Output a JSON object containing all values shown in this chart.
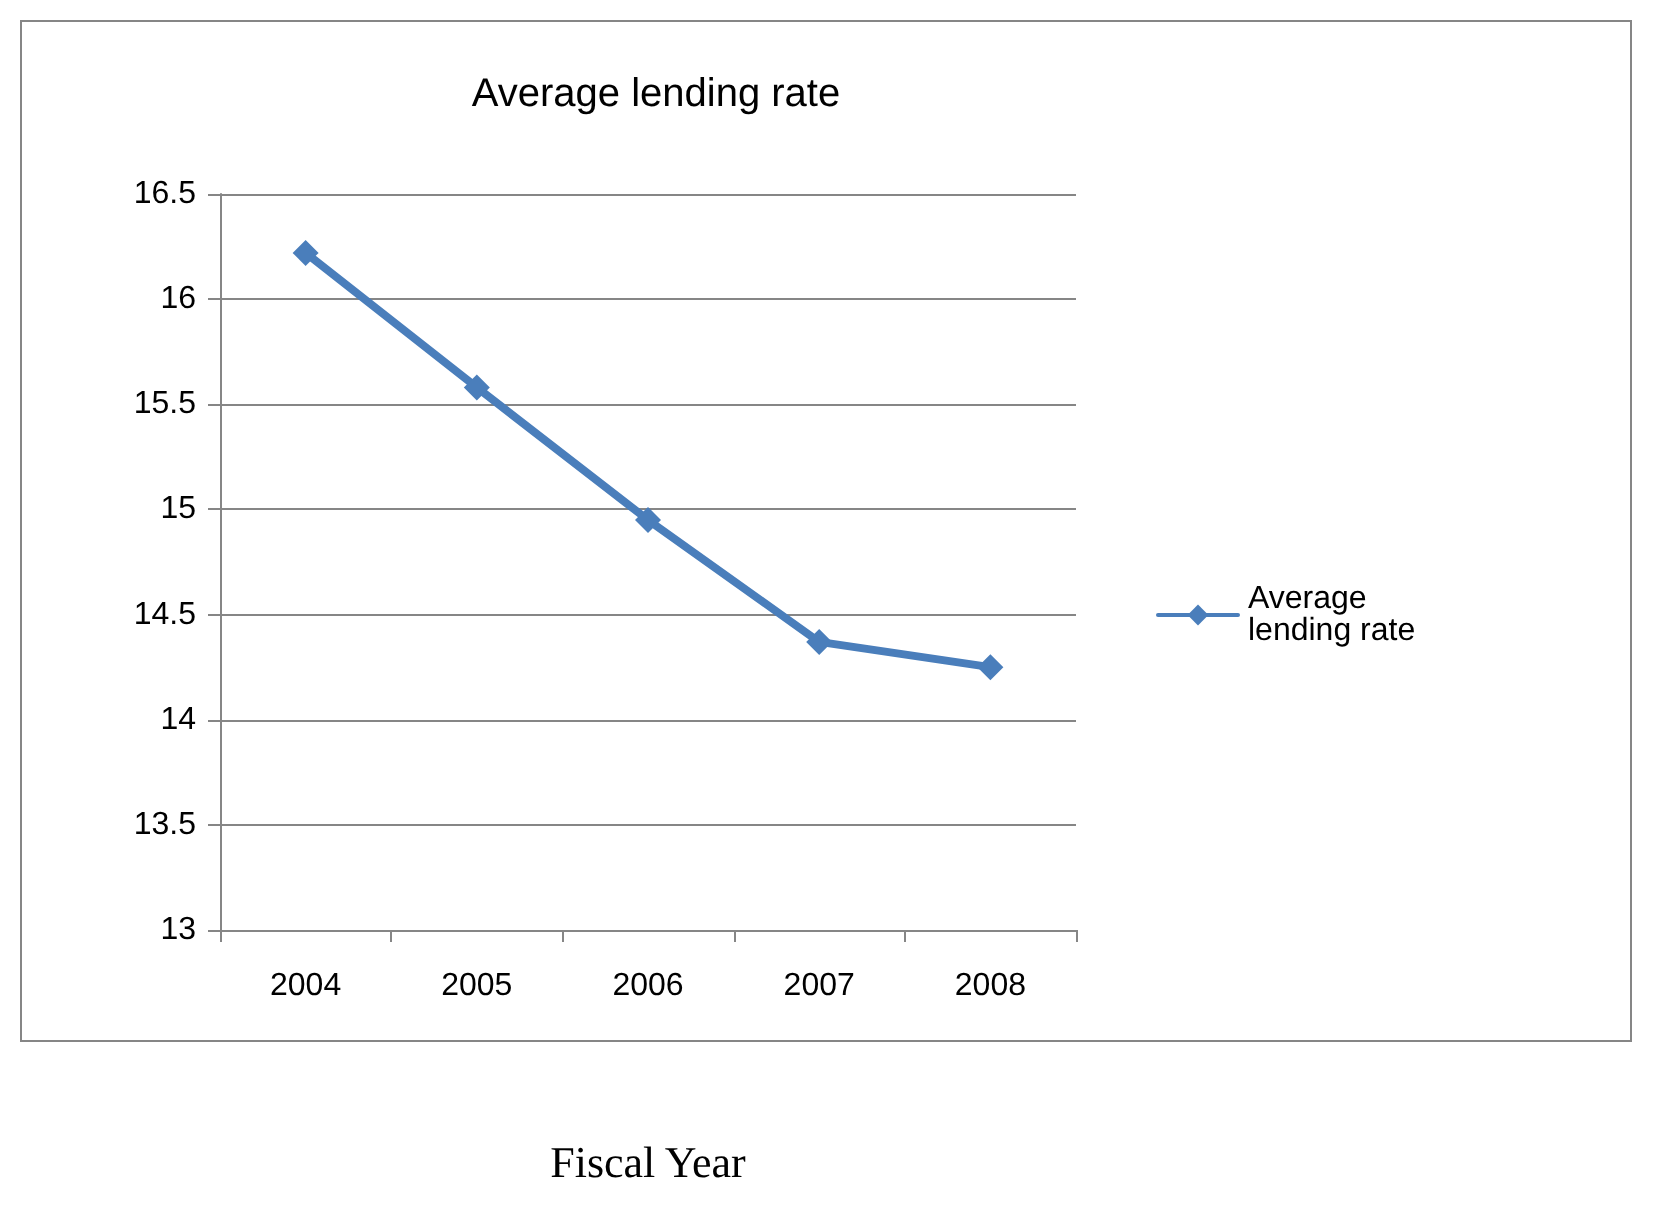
{
  "chart_data": {
    "type": "line",
    "title": "Average lending rate",
    "xlabel": "Fiscal Year",
    "categories": [
      "2004",
      "2005",
      "2006",
      "2007",
      "2008"
    ],
    "series": [
      {
        "name": "Average lending rate",
        "color": "#4a7ebb",
        "values": [
          16.22,
          15.58,
          14.95,
          14.37,
          14.25
        ]
      }
    ],
    "ylim": [
      13,
      16.5
    ],
    "yticks": [
      13,
      13.5,
      14,
      14.5,
      15,
      15.5,
      16,
      16.5
    ],
    "grid": "y",
    "legend": "right",
    "marker": "diamond",
    "line_style": "solid"
  }
}
